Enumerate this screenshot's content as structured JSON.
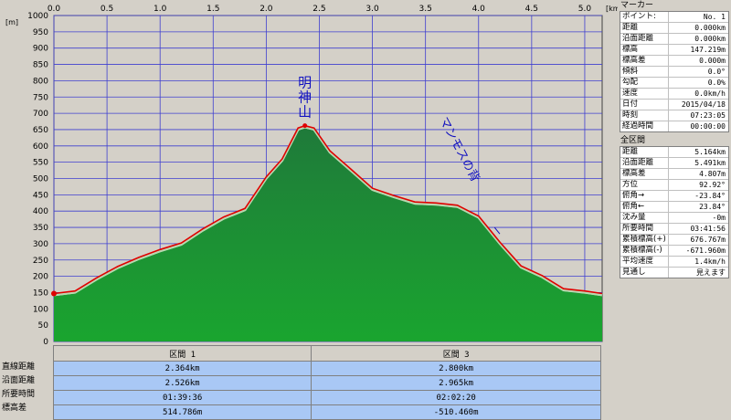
{
  "chart_data": {
    "type": "area",
    "xlabel": "[km]",
    "ylabel": "[m]",
    "xlim": [
      0,
      5.164
    ],
    "ylim": [
      0,
      1000
    ],
    "x_ticks": [
      "0.0",
      "0.5",
      "1.0",
      "1.5",
      "2.0",
      "2.5",
      "3.0",
      "3.5",
      "4.0",
      "4.5",
      "5.0"
    ],
    "y_ticks": [
      "0",
      "50",
      "100",
      "150",
      "200",
      "250",
      "300",
      "350",
      "400",
      "450",
      "500",
      "550",
      "600",
      "650",
      "700",
      "750",
      "800",
      "850",
      "900",
      "950",
      "1000"
    ],
    "grid": true,
    "series": [
      {
        "values": [
          [
            0,
            147
          ],
          [
            0.2,
            155
          ],
          [
            0.4,
            195
          ],
          [
            0.6,
            230
          ],
          [
            0.8,
            258
          ],
          [
            1.0,
            282
          ],
          [
            1.2,
            302
          ],
          [
            1.4,
            345
          ],
          [
            1.6,
            382
          ],
          [
            1.8,
            408
          ],
          [
            2.0,
            505
          ],
          [
            2.15,
            560
          ],
          [
            2.3,
            655
          ],
          [
            2.364,
            662
          ],
          [
            2.45,
            655
          ],
          [
            2.6,
            585
          ],
          [
            2.8,
            528
          ],
          [
            3.0,
            470
          ],
          [
            3.2,
            448
          ],
          [
            3.4,
            428
          ],
          [
            3.6,
            425
          ],
          [
            3.8,
            418
          ],
          [
            4.0,
            385
          ],
          [
            4.2,
            305
          ],
          [
            4.4,
            232
          ],
          [
            4.6,
            202
          ],
          [
            4.8,
            162
          ],
          [
            5.0,
            155
          ],
          [
            5.164,
            147
          ]
        ]
      }
    ],
    "annotations": [
      {
        "text": "明神山",
        "x": 2.364,
        "y": 662
      },
      {
        "text": "マンモスの背",
        "x": 4.2,
        "y": 330
      }
    ]
  },
  "segments": {
    "headers": [
      "区間 1",
      "区間 3"
    ],
    "row_labels": [
      "直線距離",
      "沿面距離",
      "所要時間",
      "標高差"
    ],
    "rows": [
      [
        "2.364km",
        "2.800km"
      ],
      [
        "2.526km",
        "2.965km"
      ],
      [
        "01:39:36",
        "02:02:20"
      ],
      [
        "514.786m",
        "-510.460m"
      ]
    ]
  },
  "marker": {
    "title": "マーカー",
    "rows": [
      {
        "k": "ポイント:",
        "v": "No. 1"
      },
      {
        "k": "距離",
        "v": "0.000km"
      },
      {
        "k": "沿面距離",
        "v": "0.000km"
      },
      {
        "k": "標高",
        "v": "147.219m"
      },
      {
        "k": "標高差",
        "v": "0.000m"
      },
      {
        "k": "傾斜",
        "v": "0.0°"
      },
      {
        "k": "勾配",
        "v": "0.0%"
      },
      {
        "k": "速度",
        "v": "0.0km/h"
      },
      {
        "k": "日付",
        "v": "2015/04/18"
      },
      {
        "k": "時刻",
        "v": "07:23:05"
      },
      {
        "k": "経過時間",
        "v": "00:00:00"
      }
    ]
  },
  "summary": {
    "title": "全区間",
    "rows": [
      {
        "k": "距離",
        "v": "5.164km"
      },
      {
        "k": "沿面距離",
        "v": "5.491km"
      },
      {
        "k": "標高差",
        "v": "4.807m"
      },
      {
        "k": "方位",
        "v": "92.92°"
      },
      {
        "k": "俯角→",
        "v": "-23.84°"
      },
      {
        "k": "俯角←",
        "v": "23.84°"
      },
      {
        "k": "沈み量",
        "v": "-0m"
      },
      {
        "k": "所要時間",
        "v": "03:41:56"
      },
      {
        "k": "累積標高(+)",
        "v": "676.767m"
      },
      {
        "k": "累積標高(-)",
        "v": "-671.960m"
      },
      {
        "k": "平均速度",
        "v": "1.4km/h"
      },
      {
        "k": "見通し",
        "v": "見えます"
      }
    ]
  },
  "colors": {
    "fill_top": "#1f7a3a",
    "fill_bottom": "#1aa52f",
    "line": "#e00000",
    "grid": "#3f3fd0",
    "plot_bg": "#d4d0c8",
    "annotation": "#1010c0"
  }
}
